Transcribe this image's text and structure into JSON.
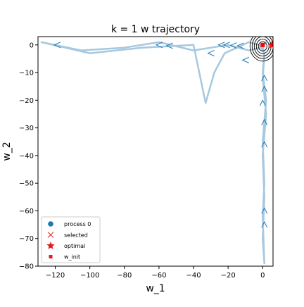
{
  "chart_data": {
    "type": "line",
    "title": "k = 1 w trajectory",
    "xlabel": "w_1",
    "ylabel": "w_2",
    "xlim": [
      -130,
      6
    ],
    "ylim": [
      -80,
      3
    ],
    "xticks": [
      -120,
      -100,
      -80,
      -60,
      -40,
      -20,
      0
    ],
    "yticks": [
      0,
      -10,
      -20,
      -30,
      -40,
      -50,
      -60,
      -70,
      -80
    ],
    "xtick_labels": [
      "−120",
      "−100",
      "−80",
      "−60",
      "−40",
      "−20",
      "0"
    ],
    "ytick_labels": [
      "0",
      "−10",
      "−20",
      "−30",
      "−40",
      "−50",
      "−60",
      "−70",
      "−80"
    ],
    "grid": false,
    "legend_position": "lower-left",
    "legend": [
      {
        "label": "process 0",
        "marker": "circle",
        "color": "#1f77b4"
      },
      {
        "label": "selected",
        "marker": "x",
        "color": "#d62728"
      },
      {
        "label": "optimal",
        "marker": "star",
        "color": "#e41a1c"
      },
      {
        "label": "w_init",
        "marker": "square",
        "color": "#e41a1c"
      }
    ],
    "colors": {
      "trajectory": "#a6c8e0",
      "arrows": "#1f77b4",
      "contours": "#000000",
      "optimal": "#ff0000"
    },
    "series": [
      {
        "name": "process 0",
        "points": [
          [
            0,
            0
          ],
          [
            2,
            1
          ],
          [
            -1,
            -1
          ],
          [
            -8,
            -2
          ],
          [
            -20,
            0
          ],
          [
            -40,
            -2
          ],
          [
            -60,
            1
          ],
          [
            -80,
            -1
          ],
          [
            -105,
            -2
          ],
          [
            -128,
            1
          ],
          [
            -100,
            -3
          ],
          [
            -70,
            -1
          ],
          [
            -40,
            0
          ],
          [
            -33,
            -21
          ],
          [
            -28,
            -10
          ],
          [
            -22,
            -3
          ],
          [
            -15,
            -1
          ],
          [
            -8,
            1
          ],
          [
            -2,
            0
          ],
          [
            1,
            -3
          ],
          [
            0,
            -10
          ],
          [
            2,
            -20
          ],
          [
            0,
            -35
          ],
          [
            1,
            -50
          ],
          [
            0,
            -62
          ],
          [
            1,
            -79
          ],
          [
            0,
            -70
          ],
          [
            1,
            -55
          ],
          [
            0,
            -40
          ],
          [
            2,
            -25
          ],
          [
            0,
            -12
          ],
          [
            1,
            -4
          ],
          [
            0,
            0
          ]
        ]
      }
    ],
    "direction_markers": [
      [
        -119,
        0
      ],
      [
        -60,
        0
      ],
      [
        -54,
        -0.3
      ],
      [
        -30,
        -3
      ],
      [
        -24,
        0
      ],
      [
        -21,
        0
      ],
      [
        -17,
        -0.2
      ],
      [
        -13,
        -0.3
      ],
      [
        -10,
        -5.5
      ],
      [
        1,
        -12
      ],
      [
        1,
        -16
      ],
      [
        0,
        -21
      ],
      [
        1,
        -28
      ],
      [
        1,
        -36
      ],
      [
        1,
        -60
      ],
      [
        1,
        -65
      ]
    ],
    "optimal": [
      0.5,
      0
    ],
    "w_init": [
      0,
      0
    ],
    "contour_center": [
      0,
      0
    ],
    "contour_levels": 5
  }
}
